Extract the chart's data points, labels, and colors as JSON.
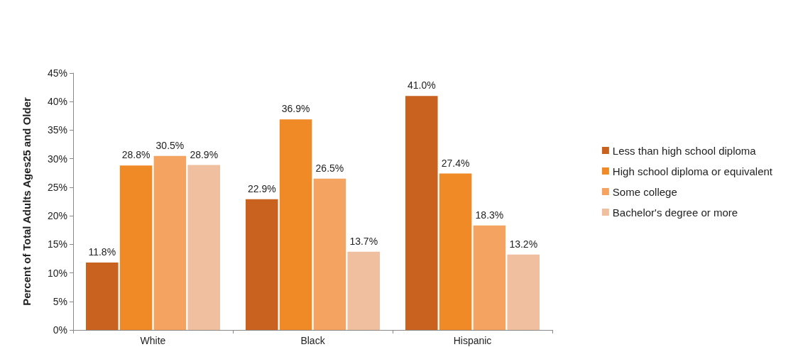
{
  "chart_data": {
    "type": "bar",
    "ylabel": "Percent of Total Adults Ages25 and Older",
    "categories": [
      "White",
      "Black",
      "Hispanic"
    ],
    "series": [
      {
        "name": "Less than high school diploma",
        "color": "#c8621e",
        "values": [
          11.8,
          22.9,
          41.0
        ],
        "value_labels": [
          "11.8%",
          "22.9%",
          "41.0%"
        ]
      },
      {
        "name": "High school diploma or equivalent",
        "color": "#f08a26",
        "values": [
          28.8,
          36.9,
          27.4
        ],
        "value_labels": [
          "28.8%",
          "36.9%",
          "27.4%"
        ]
      },
      {
        "name": "Some college",
        "color": "#f4a460",
        "values": [
          30.5,
          26.5,
          18.3
        ],
        "value_labels": [
          "30.5%",
          "26.5%",
          "18.3%"
        ]
      },
      {
        "name": "Bachelor's degree or more",
        "color": "#efbfa0",
        "values": [
          28.9,
          13.7,
          13.2
        ],
        "value_labels": [
          "28.9%",
          "13.7%",
          "13.2%"
        ]
      }
    ],
    "ylim": [
      0,
      45
    ],
    "yticks": [
      {
        "value": 0,
        "label": "0%"
      },
      {
        "value": 5,
        "label": "5%"
      },
      {
        "value": 10,
        "label": "10%"
      },
      {
        "value": 15,
        "label": "15%"
      },
      {
        "value": 20,
        "label": "20%"
      },
      {
        "value": 25,
        "label": "25%"
      },
      {
        "value": 30,
        "label": "30%"
      },
      {
        "value": 35,
        "label": "35%"
      },
      {
        "value": 40,
        "label": "40%"
      },
      {
        "value": 45,
        "label": "45%"
      }
    ],
    "grid": false,
    "legend": "right",
    "marker": "square"
  }
}
